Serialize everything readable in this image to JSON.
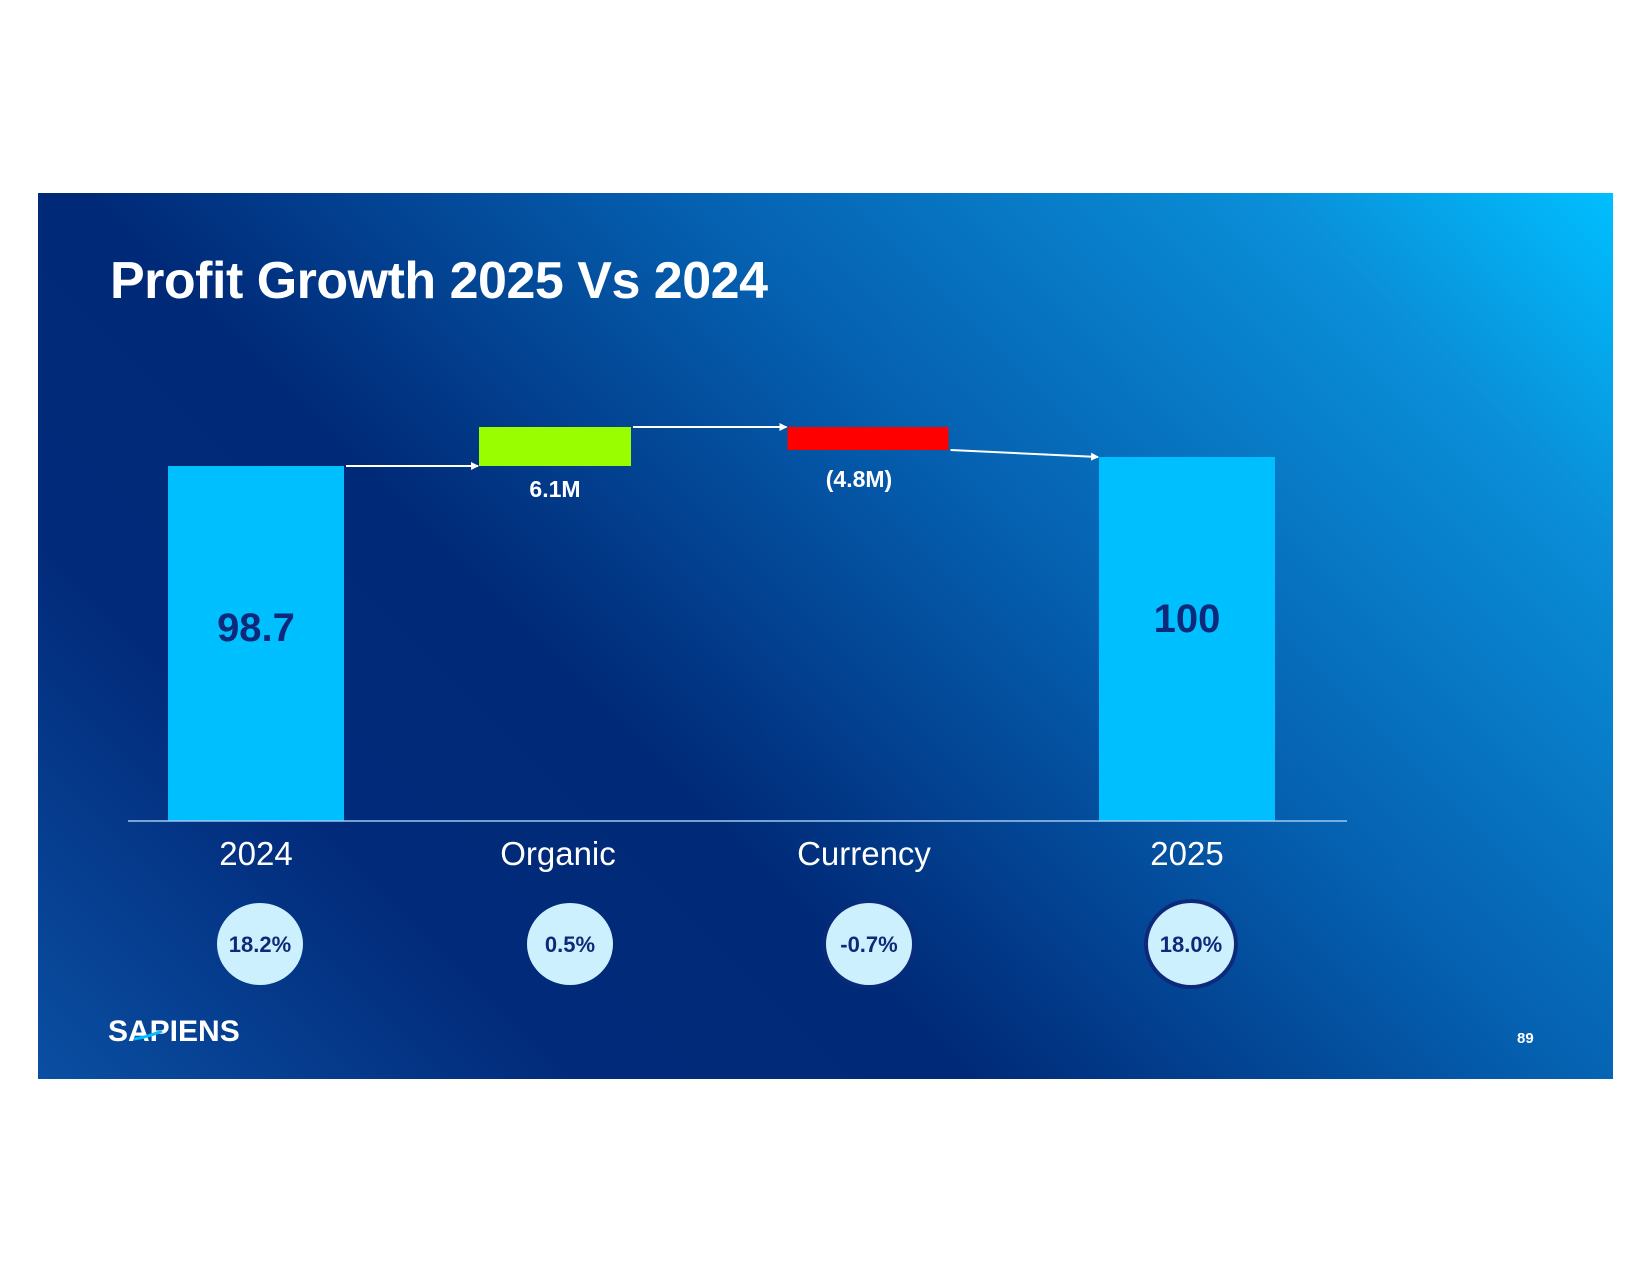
{
  "slide": {
    "title": "Profit Growth 2025 Vs 2024",
    "logo_text": "SAPIENS",
    "page_number": "89"
  },
  "colors": {
    "total_bar": "#00bfff",
    "increase_bar": "#99ff00",
    "decrease_bar": "#ff0000",
    "bar_label": "#0d2a7a",
    "circle_fill": "#cdf0ff",
    "circle_text": "#0d2a7a",
    "connector": "#ffffff",
    "axis": "#9ec8ef"
  },
  "chart_data": {
    "type": "bar",
    "subtype": "waterfall",
    "title": "Profit Growth 2025 Vs 2024",
    "xlabel": "",
    "ylabel": "",
    "categories": [
      "2024",
      "Organic",
      "Currency",
      "2025"
    ],
    "steps": [
      {
        "category": "2024",
        "kind": "total",
        "value": 98.7,
        "label": "98.7"
      },
      {
        "category": "Organic",
        "kind": "increase",
        "value": 6.1,
        "label": "6.1M"
      },
      {
        "category": "Currency",
        "kind": "decrease",
        "value": -4.8,
        "label": "(4.8M)"
      },
      {
        "category": "2025",
        "kind": "total",
        "value": 100,
        "label": "100"
      }
    ],
    "margins": [
      {
        "category": "2024",
        "label": "18.2%"
      },
      {
        "category": "Organic",
        "label": "0.5%"
      },
      {
        "category": "Currency",
        "label": "-0.7%"
      },
      {
        "category": "2025",
        "label": "18.0%"
      }
    ],
    "ylim": [
      0,
      104
    ],
    "grid": false,
    "legend": "none"
  }
}
